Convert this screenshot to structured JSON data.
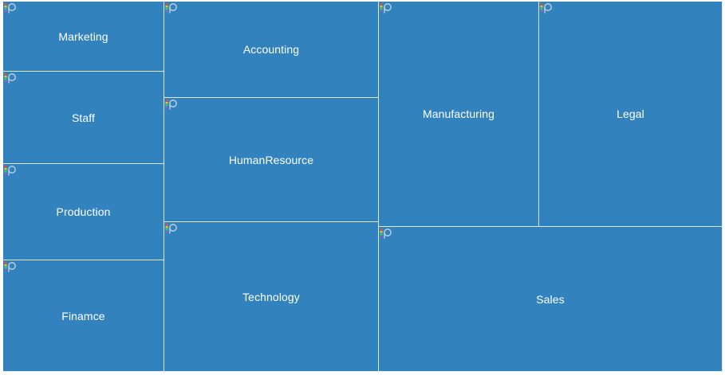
{
  "chart_data": {
    "type": "treemap",
    "title": "",
    "colors": {
      "tile": "#3182bd",
      "border": "#dfe8f1",
      "label": "#ffffff"
    },
    "icon": "treemap-logo-icon",
    "items": [
      {
        "name": "Marketing",
        "value": 8
      },
      {
        "name": "Staff",
        "value": 11
      },
      {
        "name": "Production",
        "value": 11
      },
      {
        "name": "Finamce",
        "value": 13
      },
      {
        "name": "Accounting",
        "value": 15
      },
      {
        "name": "HumanResource",
        "value": 19
      },
      {
        "name": "Technology",
        "value": 24
      },
      {
        "name": "Manufacturing",
        "value": 26
      },
      {
        "name": "Legal",
        "value": 29
      },
      {
        "name": "Sales",
        "value": 40
      }
    ]
  }
}
